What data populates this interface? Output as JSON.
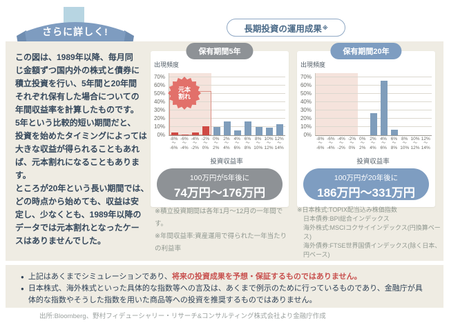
{
  "ribbon": {
    "label": "さらに詳しく!"
  },
  "header_pill": {
    "title": "長期投資の運用成果",
    "note_mark": "※"
  },
  "intro_text": "この図は、1989年以降、毎月同\nじ金額ずつ国内外の株式と債券に\n積立投資を行い、5年間と20年間\nそれぞれ保有した場合についての\n年間収益率を計算したものです。\n5年という比較的短い期間だと、\n投資を始めたタイミングによっては\n大きな収益が得られることもあれ\nば、元本割れになることもあります。\nところが20年という長い期間では、\nどの時点から始めても、収益は安\n定し、少なくとも、1989年以降の\nデータでは元本割れとなったケー\nスはありませんでした。",
  "chart_data": [
    {
      "type": "bar",
      "title": "保有期間5年",
      "ylabel": "出現頻度",
      "xlabel": "投資収益率",
      "ylim": [
        0,
        75
      ],
      "grid": true,
      "legend": "none",
      "y_ticks": [
        "0%",
        "10%",
        "20%",
        "30%",
        "40%",
        "50%",
        "60%",
        "70%"
      ],
      "bins": [
        {
          "from": "-8%",
          "to": "-6%"
        },
        {
          "from": "-6%",
          "to": "-4%"
        },
        {
          "from": "-4%",
          "to": "-2%"
        },
        {
          "from": "-2%",
          "to": "0%"
        },
        {
          "from": "0%",
          "to": "2%"
        },
        {
          "from": "2%",
          "to": "4%"
        },
        {
          "from": "4%",
          "to": "6%"
        },
        {
          "from": "6%",
          "to": "8%"
        },
        {
          "from": "8%",
          "to": "10%"
        },
        {
          "from": "10%",
          "to": "12%"
        },
        {
          "from": "12%",
          "to": "14%"
        }
      ],
      "values": [
        3,
        1,
        3,
        11,
        10,
        17,
        6,
        17,
        10,
        9,
        13
      ],
      "negative_bins": 4,
      "loss_region_bins": 4,
      "loss_box_pct": 53,
      "loss_label_l1": "元本",
      "loss_label_l2": "割れ",
      "accent_color": "#8e9296",
      "result": {
        "line1": "100万円が5年後に",
        "line2": "74万円〜176万円"
      }
    },
    {
      "type": "bar",
      "title": "保有期間20年",
      "ylabel": "出現頻度",
      "xlabel": "投資収益率",
      "ylim": [
        0,
        75
      ],
      "grid": true,
      "legend": "none",
      "y_ticks": [
        "0%",
        "10%",
        "20%",
        "30%",
        "40%",
        "50%",
        "60%",
        "70%"
      ],
      "bins": [
        {
          "from": "-8%",
          "to": "-6%"
        },
        {
          "from": "-6%",
          "to": "-4%"
        },
        {
          "from": "-4%",
          "to": "-2%"
        },
        {
          "from": "-2%",
          "to": "0%"
        },
        {
          "from": "0%",
          "to": "2%"
        },
        {
          "from": "2%",
          "to": "4%"
        },
        {
          "from": "4%",
          "to": "6%"
        },
        {
          "from": "6%",
          "to": "8%"
        },
        {
          "from": "8%",
          "to": "10%"
        },
        {
          "from": "10%",
          "to": "12%"
        },
        {
          "from": "12%",
          "to": "14%"
        }
      ],
      "values": [
        0,
        0,
        0,
        0,
        0,
        27,
        66,
        7,
        0,
        0,
        0
      ],
      "negative_bins": 4,
      "loss_region_bins": 4,
      "loss_box_pct": null,
      "accent_color": "#7e9dc1",
      "result": {
        "line1": "100万円が20年後に",
        "line2": "186万円〜331万円"
      }
    }
  ],
  "footnotes_left": [
    "※積立投資期間は各年1月〜12月の一年間です。",
    "※年間収益率:資産運用で得られた一年当たりの利益率"
  ],
  "footnotes_right": [
    "※日本株式:TOPIX配当込み株価指数",
    "日本債券:BPI総合インデックス",
    "海外株式:MSCIコクサイインデックス(円換算ベース)",
    "海外債券:FTSE世界国債インデックス(除く日本、円ベース)"
  ],
  "disclaimer": {
    "bullet1_normal": "上記はあくまでシミュレーションであり、",
    "bullet1_red": "将来の投資成果を予想・保証するものではありません。",
    "bullet2": "日本株式、海外株式といった具体的な指数等への言及は、あくまで例示のために行っているものであり、金融庁が具体的な指数やそうした指数を用いた商品等への投資を推奨するものではありません。"
  },
  "source": "出所:Bloomberg、野村フィデューシャリー・リサーチ&コンサルティング株式会社より金融庁作成",
  "ui": {
    "range_separator": "〜",
    "bullet_marker": "●"
  },
  "colors": {
    "panel_beige": "#efece3",
    "accent_blue": "#7e9dc1",
    "badge_gray": "#8e9296",
    "bar_blue": "#7f9dbb",
    "bar_red": "#cf4944",
    "loss_pink": "#f5e3dc",
    "loss_outline": "#dc9187",
    "burst_red": "#e2706a",
    "arrow_light_blue": "#b7d5e2",
    "text_dark": "#35485c",
    "text_red": "#c8504e"
  }
}
